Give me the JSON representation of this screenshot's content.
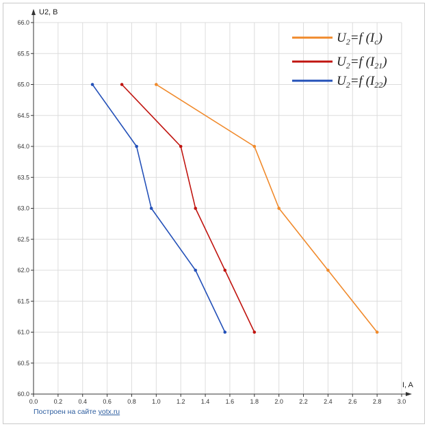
{
  "chart_data": {
    "type": "line",
    "xlabel": "I, A",
    "ylabel": "U2, B",
    "xlim": [
      0.0,
      3.0
    ],
    "ylim": [
      60.0,
      66.0
    ],
    "xticks": [
      "0.0",
      "0.2",
      "0.4",
      "0.6",
      "0.8",
      "1.0",
      "1.2",
      "1.4",
      "1.6",
      "1.8",
      "2.0",
      "2.2",
      "2.4",
      "2.6",
      "2.8",
      "3.0"
    ],
    "yticks": [
      "60.0",
      "60.5",
      "61.0",
      "61.5",
      "62.0",
      "62.5",
      "63.0",
      "63.5",
      "64.0",
      "64.5",
      "65.0",
      "65.5",
      "66.0"
    ],
    "grid": true,
    "legend_position": "top-right",
    "series": [
      {
        "name": "U2=f(Ic)",
        "color": "#f0892a",
        "points": [
          [
            1.0,
            65.0
          ],
          [
            1.8,
            64.0
          ],
          [
            2.0,
            63.0
          ],
          [
            2.4,
            62.0
          ],
          [
            2.8,
            61.0
          ]
        ]
      },
      {
        "name": "U2=f(I21)",
        "color": "#c0140f",
        "points": [
          [
            0.72,
            65.0
          ],
          [
            1.2,
            64.0
          ],
          [
            1.32,
            63.0
          ],
          [
            1.56,
            62.0
          ],
          [
            1.8,
            61.0
          ]
        ]
      },
      {
        "name": "U2=f(I22)",
        "color": "#2350b8",
        "points": [
          [
            0.48,
            65.0
          ],
          [
            0.84,
            64.0
          ],
          [
            0.96,
            63.0
          ],
          [
            1.32,
            62.0
          ],
          [
            1.56,
            61.0
          ]
        ]
      }
    ]
  },
  "legend": [
    {
      "main": "U",
      "sub": "2",
      "mid": "=f (I",
      "sub2": "c",
      "end": ")"
    },
    {
      "main": "U",
      "sub": "2",
      "mid": "=f (I",
      "sub2": "21",
      "end": ")"
    },
    {
      "main": "U",
      "sub": "2",
      "mid": "=f (I",
      "sub2": "22",
      "end": ")"
    }
  ],
  "credit": {
    "prefix": "Построен на сайте ",
    "link": "yotx.ru"
  }
}
